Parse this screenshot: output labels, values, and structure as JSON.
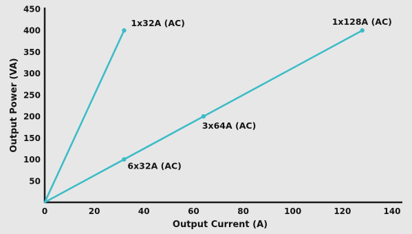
{
  "chart_data": {
    "type": "line",
    "title": "",
    "xlabel": "Output Current (A)",
    "ylabel": "Output Power (VA)",
    "xlim": [
      0,
      140
    ],
    "ylim": [
      0,
      450
    ],
    "xticks": [
      "0",
      "20",
      "40",
      "60",
      "80",
      "100",
      "120",
      "140"
    ],
    "yticks": [
      "50",
      "100",
      "150",
      "200",
      "250",
      "300",
      "350",
      "400",
      "450"
    ],
    "grid": false,
    "line_color": "#3cbcc6",
    "series": [
      {
        "points": [
          {
            "x": 0,
            "y": 0
          },
          {
            "x": 32,
            "y": 400,
            "label": "1x32A (AC)"
          }
        ]
      },
      {
        "points": [
          {
            "x": 0,
            "y": 0
          },
          {
            "x": 32,
            "y": 100,
            "label": "6x32A (AC)"
          },
          {
            "x": 64,
            "y": 200,
            "label": "3x64A (AC)"
          },
          {
            "x": 128,
            "y": 400,
            "label": "1x128A (AC)"
          }
        ]
      }
    ]
  }
}
